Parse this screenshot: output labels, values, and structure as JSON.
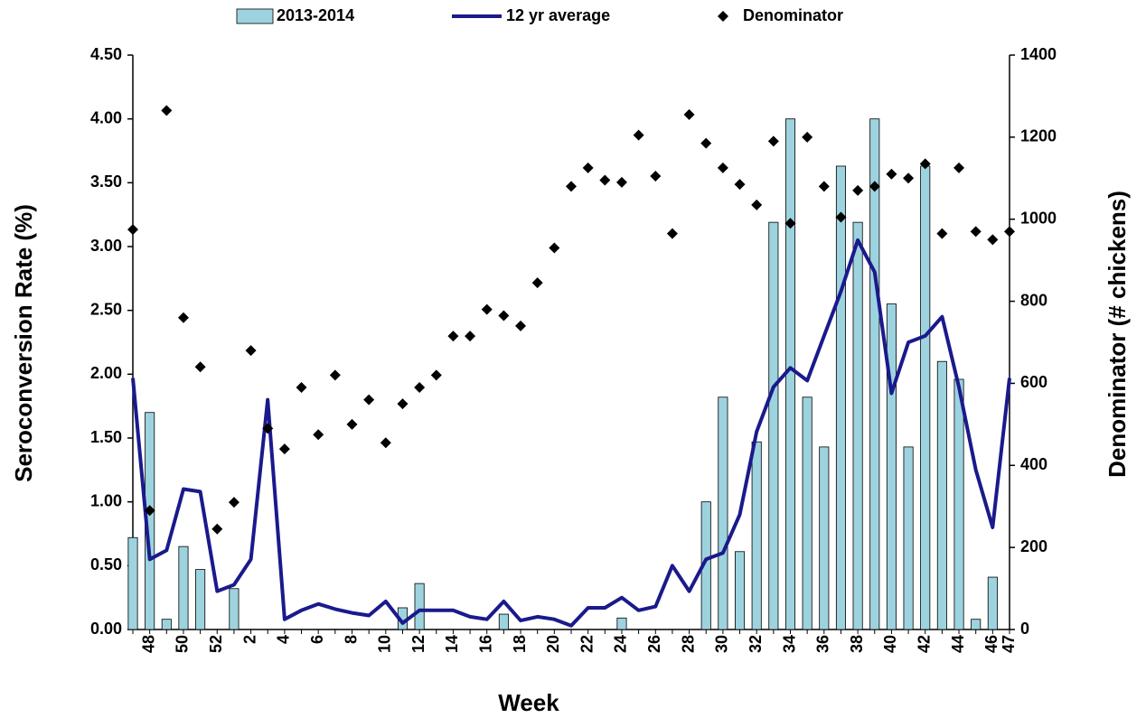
{
  "chart_data": {
    "type": "combo",
    "x_label": "Week",
    "y_label": "Seroconversion Rate (%)",
    "y2_label": "Denominator (# chickens)",
    "categories": [
      null,
      "48",
      null,
      "50",
      null,
      "52",
      null,
      "2",
      null,
      "4",
      null,
      "6",
      null,
      "8",
      null,
      "10",
      null,
      "12",
      null,
      "14",
      null,
      "16",
      null,
      "18",
      null,
      "20",
      null,
      "22",
      null,
      "24",
      null,
      "26",
      null,
      "28",
      null,
      "30",
      null,
      "32",
      null,
      "34",
      null,
      "36",
      null,
      "38",
      null,
      "40",
      null,
      "42",
      null,
      "44",
      null,
      "46",
      "47"
    ],
    "ylim": [
      0,
      4.5
    ],
    "yticks": [
      {
        "value": 0,
        "label": "0.00"
      },
      {
        "value": 0.5,
        "label": "0.50"
      },
      {
        "value": 1,
        "label": "1.00"
      },
      {
        "value": 1.5,
        "label": "1.50"
      },
      {
        "value": 2,
        "label": "2.00"
      },
      {
        "value": 2.5,
        "label": "2.50"
      },
      {
        "value": 3,
        "label": "3.00"
      },
      {
        "value": 3.5,
        "label": "3.50"
      },
      {
        "value": 4,
        "label": "4.00"
      },
      {
        "value": 4.5,
        "label": "4.50"
      }
    ],
    "y2lim": [
      0,
      1400
    ],
    "y2ticks": [
      0,
      200,
      400,
      600,
      800,
      1000,
      1200,
      1400
    ],
    "series": [
      {
        "name": "2013-2014",
        "type": "bar",
        "color": "#9dd3df",
        "values": [
          0.72,
          1.7,
          0.08,
          0.65,
          0.47,
          0,
          0.32,
          0,
          0,
          0,
          0,
          0,
          0,
          0,
          0,
          0,
          0.17,
          0.36,
          0,
          0,
          0,
          0,
          0.12,
          0,
          0,
          0,
          0,
          0,
          0,
          0.09,
          0,
          0,
          0,
          0,
          1.0,
          1.82,
          0.61,
          1.47,
          3.19,
          4.0,
          1.82,
          1.43,
          3.63,
          3.19,
          4.0,
          2.55,
          1.43,
          3.63,
          2.1,
          1.96,
          0.08,
          0.41,
          0
        ]
      },
      {
        "name": "12 yr average",
        "type": "line",
        "color": "#1a1a8c",
        "values": [
          1.97,
          0.55,
          0.62,
          1.1,
          1.08,
          0.3,
          0.35,
          0.55,
          1.8,
          0.08,
          0.15,
          0.2,
          0.16,
          0.13,
          0.11,
          0.22,
          0.05,
          0.15,
          0.15,
          0.15,
          0.1,
          0.08,
          0.22,
          0.07,
          0.1,
          0.08,
          0.03,
          0.17,
          0.17,
          0.25,
          0.15,
          0.18,
          0.5,
          0.3,
          0.55,
          0.6,
          0.9,
          1.55,
          1.9,
          2.05,
          1.95,
          2.3,
          2.65,
          3.05,
          2.8,
          1.85,
          2.25,
          2.3,
          2.45,
          1.9,
          1.25,
          0.8,
          1.97
        ]
      },
      {
        "name": "Denominator",
        "type": "scatter",
        "axis": "y2",
        "color": "#000000",
        "values": [
          975,
          290,
          1265,
          760,
          640,
          245,
          310,
          680,
          490,
          440,
          590,
          475,
          620,
          500,
          560,
          455,
          550,
          590,
          620,
          715,
          715,
          780,
          765,
          740,
          845,
          930,
          1080,
          1125,
          1095,
          1090,
          1205,
          1105,
          965,
          1255,
          1185,
          1125,
          1085,
          1035,
          1190,
          990,
          1200,
          1080,
          1005,
          1070,
          1080,
          1110,
          1100,
          1135,
          965,
          1125,
          970,
          950,
          970
        ]
      }
    ]
  }
}
